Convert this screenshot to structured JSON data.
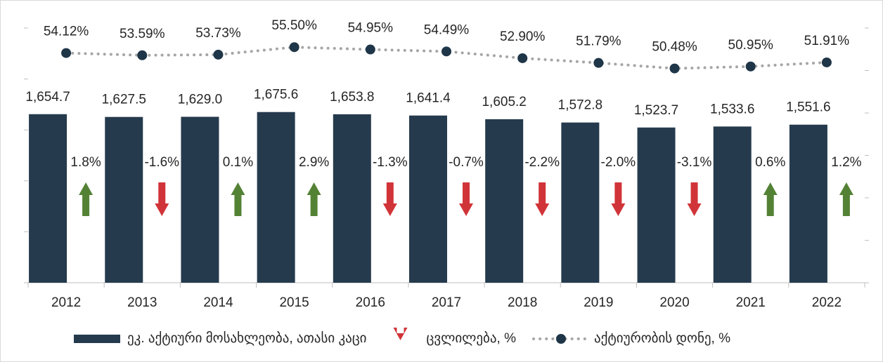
{
  "chart_data": {
    "type": "bar",
    "categories": [
      "2012",
      "2013",
      "2014",
      "2015",
      "2016",
      "2017",
      "2018",
      "2019",
      "2020",
      "2021",
      "2022"
    ],
    "series": [
      {
        "name": "ეკ. აქტიური მოსახლეობა, ათასი კაცი",
        "type": "bar",
        "color": "#253a4d",
        "values": [
          1654.7,
          1627.5,
          1629.0,
          1675.6,
          1653.8,
          1641.4,
          1605.2,
          1572.8,
          1523.7,
          1533.6,
          1551.6
        ],
        "value_labels": [
          "1,654.7",
          "1,627.5",
          "1,629.0",
          "1,675.6",
          "1,653.8",
          "1,641.4",
          "1,605.2",
          "1,572.8",
          "1,523.7",
          "1,533.6",
          "1,551.6"
        ]
      },
      {
        "name": "ცვლილება, %",
        "type": "arrow",
        "up_color": "#548235",
        "down_color": "#d13438",
        "values": [
          1.8,
          -1.6,
          0.1,
          2.9,
          -1.3,
          -0.7,
          -2.2,
          -2.0,
          -3.1,
          0.6,
          1.2
        ],
        "value_labels": [
          "1.8%",
          "-1.6%",
          "0.1%",
          "2.9%",
          "-1.3%",
          "-0.7%",
          "-2.2%",
          "-2.0%",
          "-3.1%",
          "0.6%",
          "1.2%"
        ]
      },
      {
        "name": "აქტიურობის დონე, %",
        "type": "line",
        "axis": "y2",
        "color": "#a6a6a6",
        "marker_color": "#1f3548",
        "values": [
          54.12,
          53.59,
          53.73,
          55.5,
          54.95,
          54.49,
          52.9,
          51.79,
          50.48,
          50.95,
          51.91
        ],
        "value_labels": [
          "54.12%",
          "53.59%",
          "53.73%",
          "55.50%",
          "54.95%",
          "54.49%",
          "52.90%",
          "51.79%",
          "50.48%",
          "50.95%",
          "51.91%"
        ]
      }
    ],
    "ylim": [
      0,
      2500
    ],
    "yticks": [
      0,
      500,
      1000,
      1500,
      2000,
      2500
    ],
    "y2lim": [
      0,
      60
    ],
    "y2ticks": [
      0,
      10,
      20,
      30,
      40,
      50,
      60
    ]
  }
}
